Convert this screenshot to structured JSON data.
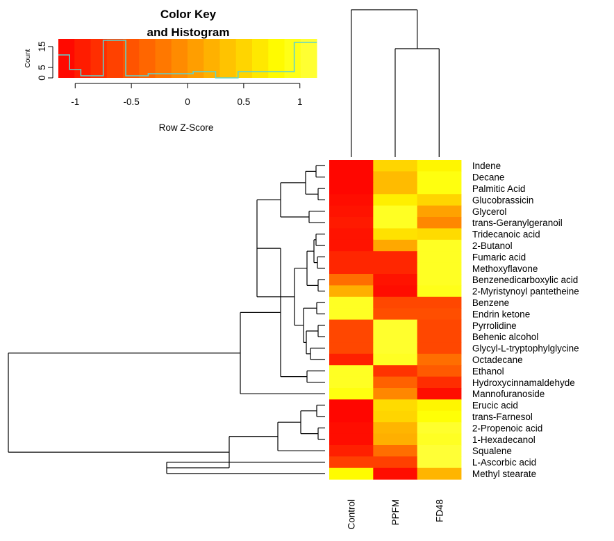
{
  "chart_data": {
    "type": "heatmap",
    "columns": [
      "Control",
      "PPFM",
      "FD48"
    ],
    "rows": [
      "Indene",
      "Decane",
      "Palmitic Acid",
      "Glucobrassicin",
      "Glycerol",
      "trans-Geranylgeranoil",
      "Tridecanoic acid",
      "2-Butanol",
      "Fumaric acid",
      "Methoxyflavone",
      "Benzenedicarboxylic acid",
      "2-Myristynoyl pantetheine",
      "Benzene",
      "Endrin ketone",
      "Pyrrolidine",
      "Behenic alcohol",
      "Glycyl-L-tryptophylglycine",
      "Octadecane",
      "Ethanol",
      "Hydroxycinnamaldehyde",
      "Mannofuranoside",
      "Erucic acid",
      "trans-Farnesol",
      "2-Propenoic acid",
      "1-Hexadecanol",
      "Squalene",
      "L-Ascorbic acid",
      "Methyl stearate"
    ],
    "z_scores": [
      [
        -1.1,
        0.5,
        0.75
      ],
      [
        -1.1,
        0.3,
        0.9
      ],
      [
        -1.1,
        0.3,
        0.9
      ],
      [
        -1.05,
        0.7,
        0.5
      ],
      [
        -1.0,
        1.0,
        0.1
      ],
      [
        -0.95,
        1.0,
        -0.1
      ],
      [
        -1.0,
        0.6,
        0.55
      ],
      [
        -1.0,
        0.15,
        1.0
      ],
      [
        -0.85,
        -0.85,
        1.0
      ],
      [
        -0.85,
        -0.85,
        1.0
      ],
      [
        -0.3,
        -1.0,
        1.0
      ],
      [
        0.2,
        -1.05,
        0.95
      ],
      [
        1.0,
        -0.6,
        -0.6
      ],
      [
        1.0,
        -0.55,
        -0.55
      ],
      [
        -0.6,
        1.05,
        -0.6
      ],
      [
        -0.6,
        1.05,
        -0.6
      ],
      [
        -0.6,
        1.05,
        -0.6
      ],
      [
        -0.9,
        1.0,
        -0.3
      ],
      [
        1.0,
        -0.75,
        -0.45
      ],
      [
        1.0,
        -0.4,
        -0.8
      ],
      [
        0.9,
        -0.1,
        -1.05
      ],
      [
        -1.1,
        0.55,
        0.75
      ],
      [
        -1.1,
        0.5,
        0.85
      ],
      [
        -1.05,
        0.25,
        1.05
      ],
      [
        -1.05,
        0.2,
        1.0
      ],
      [
        -0.9,
        -0.3,
        1.1
      ],
      [
        -0.65,
        -0.65,
        1.1
      ],
      [
        0.8,
        -1.05,
        0.25
      ]
    ],
    "color_key": {
      "title_line1": "Color Key",
      "title_line2": "and Histogram",
      "ylabel": "Count",
      "xlabel": "Row Z-Score",
      "xticks": [
        "-1",
        "-0.5",
        "0",
        "0.5",
        "1"
      ],
      "xtick_values": [
        -1,
        -0.5,
        0,
        0.5,
        1
      ],
      "yticks": [
        "0",
        "5",
        "15"
      ],
      "ytick_values": [
        0,
        5,
        15
      ],
      "xlim": [
        -1.15,
        1.15
      ],
      "colors": [
        "#ff0000",
        "#ff2a00",
        "#ff5500",
        "#ff7f00",
        "#ffaa00",
        "#ffd400",
        "#ffff00",
        "#ffff40"
      ],
      "histogram": {
        "bin_edges": [
          -1.15,
          -1.05,
          -0.95,
          -0.85,
          -0.75,
          -0.65,
          -0.55,
          -0.45,
          -0.35,
          -0.25,
          -0.15,
          -0.05,
          0.05,
          0.15,
          0.25,
          0.35,
          0.45,
          0.55,
          0.65,
          0.75,
          0.85,
          0.95,
          1.05,
          1.15
        ],
        "counts": [
          11,
          4,
          1,
          1,
          18,
          18,
          1,
          1,
          2,
          2,
          2,
          2,
          3,
          3,
          0,
          0,
          3,
          3,
          3,
          3,
          3,
          17,
          17
        ]
      }
    }
  }
}
